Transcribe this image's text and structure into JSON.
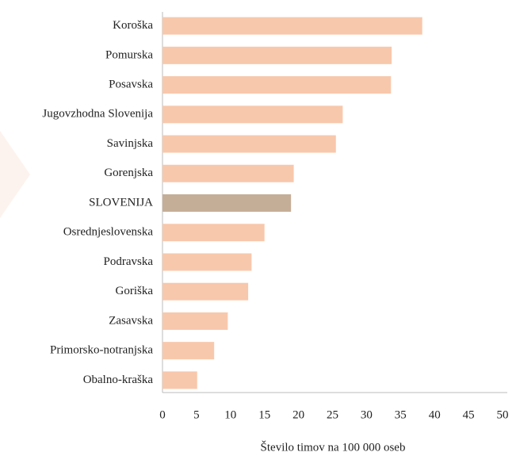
{
  "chart_data": {
    "type": "barh",
    "categories": [
      "Koroška",
      "Pomurska",
      "Posavska",
      "Jugovzhodna Slovenija",
      "Savinjska",
      "Gorenjska",
      "SLOVENIJA",
      "Osrednjeslovenska",
      "Podravska",
      "Goriška",
      "Zasavska",
      "Primorsko-notranjska",
      "Obalno-kraška"
    ],
    "values": [
      38.2,
      33.7,
      33.6,
      26.5,
      25.5,
      19.3,
      18.9,
      15.0,
      13.1,
      12.6,
      9.6,
      7.6,
      5.1
    ],
    "colors": [
      "#f8c8ac",
      "#f8c8ac",
      "#f8c8ac",
      "#f8c8ac",
      "#f8c8ac",
      "#f8c8ac",
      "#c5ae97",
      "#f8c8ac",
      "#f8c8ac",
      "#f8c8ac",
      "#f8c8ac",
      "#f8c8ac",
      "#f8c8ac"
    ],
    "xlabel": "Število timov na 100 000 oseb",
    "xlim": [
      0,
      50
    ],
    "xticks": [
      0,
      5,
      10,
      15,
      20,
      25,
      30,
      35,
      40,
      45,
      50
    ],
    "grid": false
  }
}
